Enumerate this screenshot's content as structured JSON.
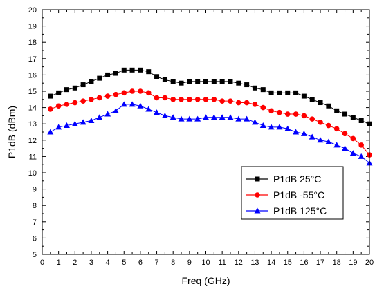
{
  "chart_data": {
    "type": "line",
    "xlabel": "Freq (GHz)",
    "ylabel": "P1dB (dBm)",
    "xlim": [
      0,
      20
    ],
    "ylim": [
      5,
      20
    ],
    "xticks": [
      "0",
      "1",
      "2",
      "3",
      "4",
      "5",
      "6",
      "7",
      "8",
      "9",
      "10",
      "11",
      "12",
      "13",
      "14",
      "15",
      "16",
      "17",
      "18",
      "19",
      "20"
    ],
    "yticks": [
      "5",
      "6",
      "7",
      "8",
      "9",
      "10",
      "11",
      "12",
      "13",
      "14",
      "15",
      "16",
      "17",
      "18",
      "19",
      "20"
    ],
    "grid": false,
    "legend_position": "lower-right",
    "series": [
      {
        "name": "P1dB  25°C",
        "color": "#000000",
        "marker": "square",
        "x": [
          0.5,
          1.0,
          1.5,
          2.0,
          2.5,
          3.0,
          3.5,
          4.0,
          4.5,
          5.0,
          5.5,
          6.0,
          6.5,
          7.0,
          7.5,
          8.0,
          8.5,
          9.0,
          9.5,
          10.0,
          10.5,
          11.0,
          11.5,
          12.0,
          12.5,
          13.0,
          13.5,
          14.0,
          14.5,
          15.0,
          15.5,
          16.0,
          16.5,
          17.0,
          17.5,
          18.0,
          18.5,
          19.0,
          19.5,
          20.0
        ],
        "y": [
          14.7,
          14.9,
          15.1,
          15.2,
          15.4,
          15.6,
          15.8,
          16.0,
          16.1,
          16.3,
          16.3,
          16.3,
          16.2,
          15.9,
          15.7,
          15.6,
          15.5,
          15.6,
          15.6,
          15.6,
          15.6,
          15.6,
          15.6,
          15.5,
          15.4,
          15.2,
          15.1,
          14.9,
          14.9,
          14.9,
          14.9,
          14.7,
          14.5,
          14.3,
          14.1,
          13.8,
          13.6,
          13.4,
          13.2,
          13.0
        ]
      },
      {
        "name": "P1dB  -55°C",
        "color": "#ff0000",
        "marker": "circle",
        "x": [
          0.5,
          1.0,
          1.5,
          2.0,
          2.5,
          3.0,
          3.5,
          4.0,
          4.5,
          5.0,
          5.5,
          6.0,
          6.5,
          7.0,
          7.5,
          8.0,
          8.5,
          9.0,
          9.5,
          10.0,
          10.5,
          11.0,
          11.5,
          12.0,
          12.5,
          13.0,
          13.5,
          14.0,
          14.5,
          15.0,
          15.5,
          16.0,
          16.5,
          17.0,
          17.5,
          18.0,
          18.5,
          19.0,
          19.5,
          20.0
        ],
        "y": [
          13.9,
          14.1,
          14.2,
          14.3,
          14.4,
          14.5,
          14.6,
          14.7,
          14.8,
          14.9,
          15.0,
          15.0,
          14.9,
          14.6,
          14.6,
          14.5,
          14.5,
          14.5,
          14.5,
          14.5,
          14.5,
          14.4,
          14.4,
          14.3,
          14.3,
          14.2,
          14.0,
          13.8,
          13.7,
          13.6,
          13.6,
          13.5,
          13.3,
          13.1,
          12.9,
          12.7,
          12.4,
          12.1,
          11.7,
          11.1
        ]
      },
      {
        "name": "P1dB  125°C",
        "color": "#0000ff",
        "marker": "triangle",
        "x": [
          0.5,
          1.0,
          1.5,
          2.0,
          2.5,
          3.0,
          3.5,
          4.0,
          4.5,
          5.0,
          5.5,
          6.0,
          6.5,
          7.0,
          7.5,
          8.0,
          8.5,
          9.0,
          9.5,
          10.0,
          10.5,
          11.0,
          11.5,
          12.0,
          12.5,
          13.0,
          13.5,
          14.0,
          14.5,
          15.0,
          15.5,
          16.0,
          16.5,
          17.0,
          17.5,
          18.0,
          18.5,
          19.0,
          19.5,
          20.0
        ],
        "y": [
          12.5,
          12.8,
          12.9,
          13.0,
          13.1,
          13.2,
          13.4,
          13.6,
          13.8,
          14.2,
          14.2,
          14.1,
          13.9,
          13.7,
          13.5,
          13.4,
          13.3,
          13.3,
          13.3,
          13.4,
          13.4,
          13.4,
          13.4,
          13.3,
          13.3,
          13.1,
          12.9,
          12.8,
          12.8,
          12.7,
          12.5,
          12.4,
          12.2,
          12.0,
          11.9,
          11.7,
          11.5,
          11.2,
          11.0,
          10.6
        ]
      }
    ]
  }
}
